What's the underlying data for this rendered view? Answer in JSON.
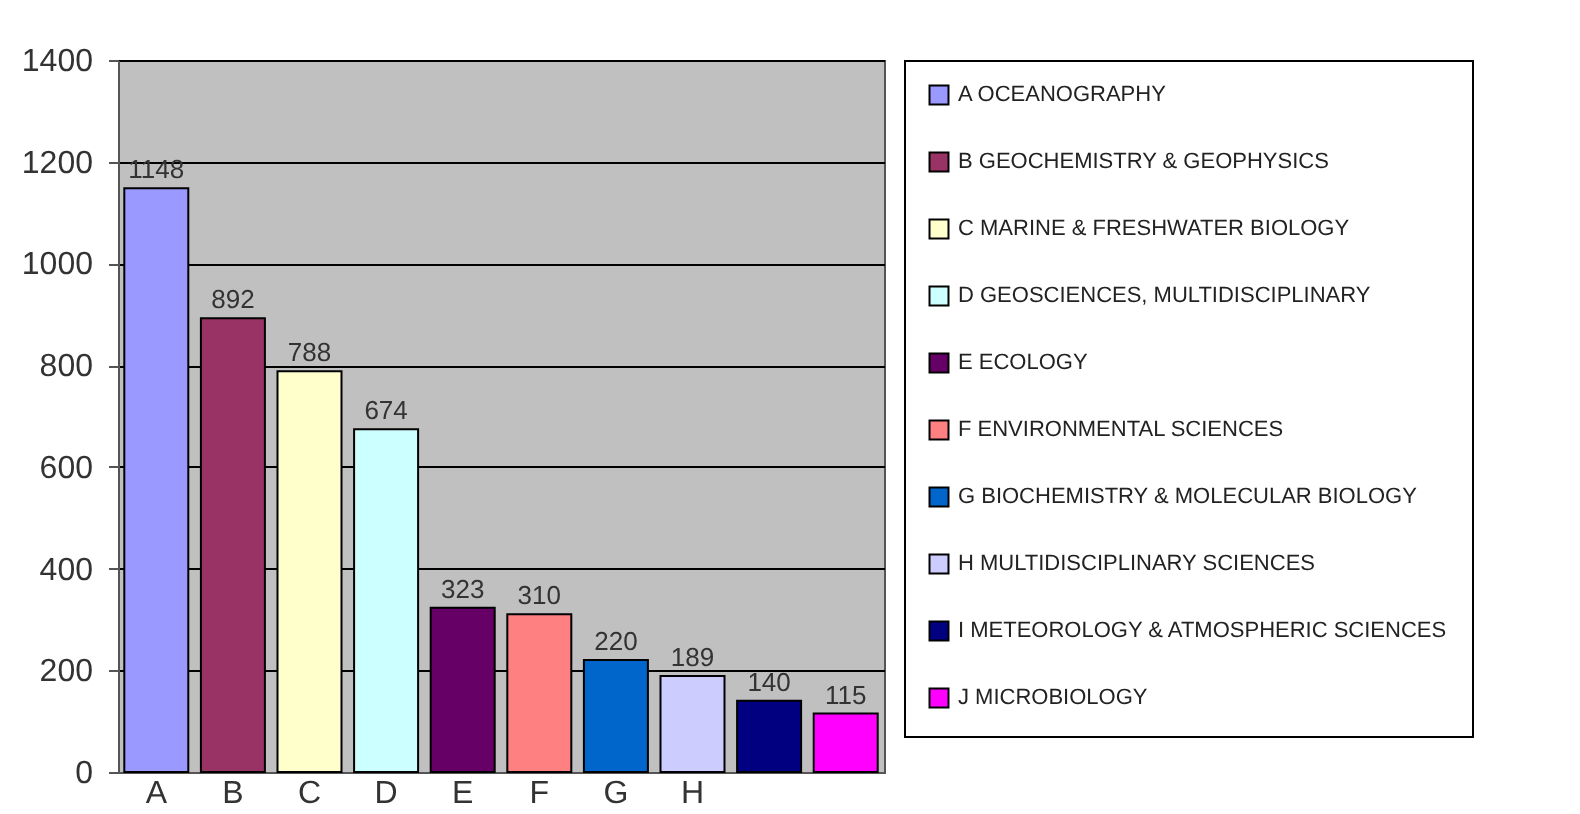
{
  "chart_data": {
    "type": "bar",
    "categories": [
      "A",
      "B",
      "C",
      "D",
      "E",
      "F",
      "G",
      "H",
      null,
      null
    ],
    "series": [
      {
        "name": "A OCEANOGRAPHY",
        "color": "#9999ff",
        "values": [
          1148,
          null,
          null,
          null,
          null,
          null,
          null,
          null,
          null,
          null
        ]
      },
      {
        "name": "B GEOCHEMISTRY & GEOPHYSICS",
        "color": "#993366",
        "values": [
          null,
          892,
          null,
          null,
          null,
          null,
          null,
          null,
          null,
          null
        ]
      },
      {
        "name": "C MARINE & FRESHWATER BIOLOGY",
        "color": "#ffffcc",
        "values": [
          null,
          null,
          788,
          null,
          null,
          null,
          null,
          null,
          null,
          null
        ]
      },
      {
        "name": "D GEOSCIENCES, MULTIDISCIPLINARY",
        "color": "#ccffff",
        "values": [
          null,
          null,
          null,
          674,
          null,
          null,
          null,
          null,
          null,
          null
        ]
      },
      {
        "name": "E ECOLOGY",
        "color": "#660066",
        "values": [
          null,
          null,
          null,
          null,
          323,
          null,
          null,
          null,
          null,
          null
        ]
      },
      {
        "name": "F ENVIRONMENTAL SCIENCES",
        "color": "#ff8080",
        "values": [
          null,
          null,
          null,
          null,
          null,
          310,
          null,
          null,
          null,
          null
        ]
      },
      {
        "name": "G BIOCHEMISTRY & MOLECULAR BIOLOGY",
        "color": "#0066cc",
        "values": [
          null,
          null,
          null,
          null,
          null,
          null,
          220,
          null,
          null,
          null
        ]
      },
      {
        "name": "H MULTIDISCIPLINARY SCIENCES",
        "color": "#ccccff",
        "values": [
          null,
          null,
          null,
          null,
          null,
          null,
          null,
          189,
          null,
          null
        ]
      },
      {
        "name": "I METEOROLOGY & ATMOSPHERIC SCIENCES",
        "color": "#000080",
        "values": [
          null,
          null,
          null,
          null,
          null,
          null,
          null,
          null,
          140,
          null
        ]
      },
      {
        "name": "J MICROBIOLOGY",
        "color": "#ff00ff",
        "values": [
          null,
          null,
          null,
          null,
          null,
          null,
          null,
          null,
          null,
          115
        ]
      }
    ],
    "ylim": [
      0,
      1400
    ],
    "yticks": [
      0,
      200,
      400,
      600,
      800,
      1000,
      1200,
      1400
    ],
    "grid": "y",
    "legend": "right",
    "data_labels": true
  }
}
